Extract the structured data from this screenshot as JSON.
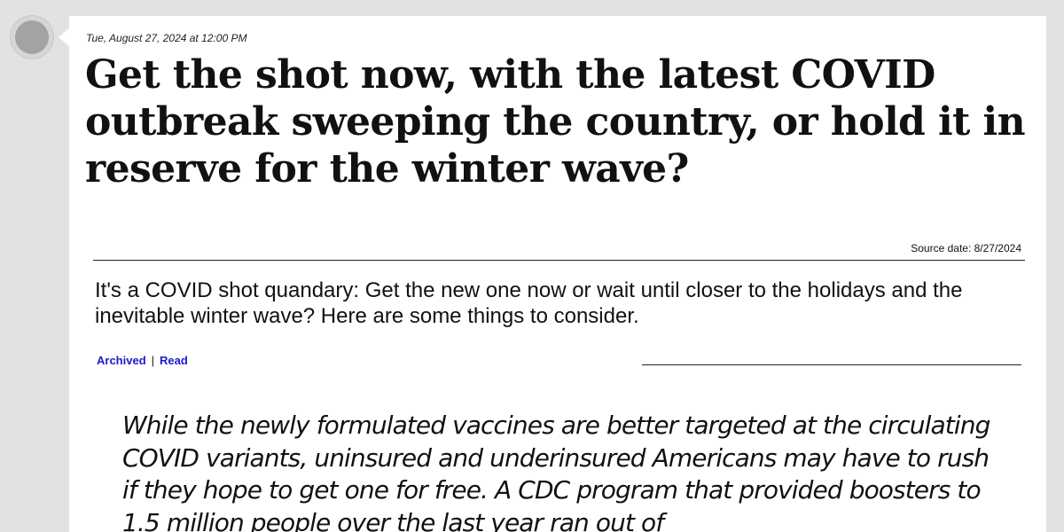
{
  "post": {
    "timestamp": "Tue, August 27, 2024 at 12:00 PM",
    "headline": "Get the shot now, with the latest COVID outbreak sweeping the country, or hold it in reserve for the winter wave?",
    "source_date": "Source date: 8/27/2024",
    "summary": "It's a COVID shot quandary: Get the new one now or wait until closer to the holidays and the inevitable winter wave? Here are some things to consider.",
    "links": {
      "archived": "Archived",
      "separator": "|",
      "read": "Read"
    },
    "quote": "While the newly formulated vaccines are better targeted at the circulating COVID variants, uninsured and underinsured Americans may have to rush if they hope to get one for free. A CDC program that provided boosters to 1.5 million people over the last year ran out of"
  },
  "icons": {
    "avatar": "avatar-circle"
  }
}
